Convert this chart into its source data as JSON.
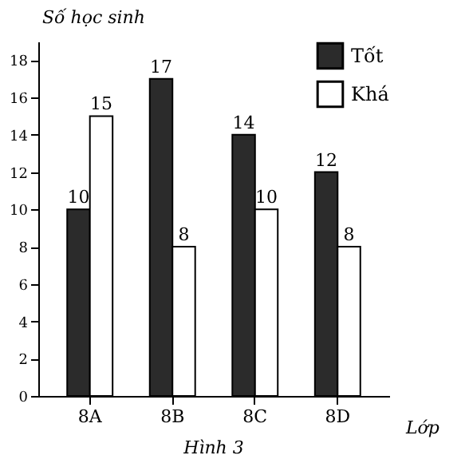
{
  "chart_data": {
    "type": "bar",
    "title": "Hình 3",
    "ylabel": "Số học sinh",
    "xlabel": "Lớp",
    "categories": [
      "8A",
      "8B",
      "8C",
      "8D"
    ],
    "series": [
      {
        "name": "Tốt",
        "color": "#2b2b2b",
        "values": [
          10,
          17,
          14,
          12
        ]
      },
      {
        "name": "Khá",
        "color": "#ffffff",
        "values": [
          15,
          8,
          10,
          8
        ]
      }
    ],
    "ylim": [
      0,
      19
    ],
    "yticks": [
      0,
      2,
      4,
      6,
      8,
      10,
      12,
      14,
      16,
      18
    ],
    "grid": false,
    "legend": "top right",
    "data_labels": true
  }
}
